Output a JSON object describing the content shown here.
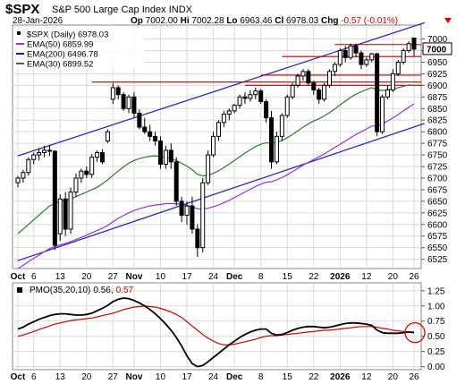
{
  "header": {
    "symbol": "$SPX",
    "name": "S&P 500 Large Cap Index",
    "exchange": "INDX",
    "date": "28-Jan-2026",
    "open_label": "Op",
    "open": "7002.00",
    "high_label": "Hi",
    "high": "7002.28",
    "low_label": "Lo",
    "low": "6963.46",
    "close_label": "Cl",
    "close": "6978.03",
    "change_label": "Chg",
    "change": "-0.57 (-0.01%)"
  },
  "chart_data": [
    {
      "type": "candlestick",
      "ylim": [
        6505,
        7030
      ],
      "y_ticks": [
        6525,
        6550,
        6575,
        6600,
        6625,
        6650,
        6675,
        6700,
        6725,
        6750,
        6775,
        6800,
        6825,
        6850,
        6875,
        6900,
        6925,
        6950,
        6975,
        7000
      ],
      "x_tick_labels": [
        "Oct",
        "6",
        "13",
        "20",
        "27",
        "Nov",
        "10",
        "17",
        "24",
        "Dec",
        "8",
        "15",
        "22",
        "2026",
        "12",
        "20",
        "26"
      ],
      "x_tick_index": [
        0,
        3,
        8,
        13,
        18,
        22,
        27,
        32,
        37,
        41,
        46,
        51,
        56,
        61,
        66,
        71,
        75
      ],
      "bold_tick_labels": [
        "Oct",
        "Nov",
        "Dec",
        "2026"
      ],
      "legend": [
        {
          "label": "$SPX (Daily) 6978.03",
          "color": "#000000"
        },
        {
          "label": "EMA(50) 6859.99",
          "color": "#9933cc"
        },
        {
          "label": "EMA(200) 6496.78",
          "color": "#1a1a99"
        },
        {
          "label": "EMA(30) 6899.52",
          "color": "#2d7a2d"
        }
      ],
      "candles": [
        [
          6690,
          6705,
          6680,
          6700
        ],
        [
          6700,
          6718,
          6690,
          6712
        ],
        [
          6712,
          6745,
          6705,
          6740
        ],
        [
          6740,
          6755,
          6730,
          6750
        ],
        [
          6750,
          6765,
          6738,
          6755
        ],
        [
          6755,
          6770,
          6745,
          6760
        ],
        [
          6760,
          6772,
          6748,
          6758
        ],
        [
          6758,
          6760,
          6545,
          6555
        ],
        [
          6580,
          6665,
          6565,
          6655
        ],
        [
          6655,
          6670,
          6575,
          6590
        ],
        [
          6590,
          6680,
          6580,
          6670
        ],
        [
          6670,
          6710,
          6660,
          6700
        ],
        [
          6700,
          6720,
          6690,
          6715
        ],
        [
          6715,
          6725,
          6700,
          6708
        ],
        [
          6708,
          6752,
          6700,
          6745
        ],
        [
          6745,
          6760,
          6735,
          6755
        ],
        [
          6755,
          6762,
          6730,
          6735
        ],
        [
          6780,
          6805,
          6775,
          6800
        ],
        [
          6870,
          6905,
          6860,
          6895
        ],
        [
          6895,
          6900,
          6870,
          6880
        ],
        [
          6880,
          6885,
          6845,
          6850
        ],
        [
          6850,
          6880,
          6840,
          6875
        ],
        [
          6875,
          6885,
          6830,
          6840
        ],
        [
          6840,
          6848,
          6805,
          6810
        ],
        [
          6810,
          6830,
          6795,
          6800
        ],
        [
          6800,
          6815,
          6780,
          6790
        ],
        [
          6790,
          6800,
          6770,
          6780
        ],
        [
          6780,
          6790,
          6720,
          6730
        ],
        [
          6730,
          6770,
          6720,
          6760
        ],
        [
          6760,
          6775,
          6720,
          6735
        ],
        [
          6735,
          6745,
          6640,
          6650
        ],
        [
          6650,
          6660,
          6605,
          6620
        ],
        [
          6620,
          6650,
          6600,
          6640
        ],
        [
          6640,
          6660,
          6580,
          6590
        ],
        [
          6590,
          6600,
          6530,
          6550
        ],
        [
          6550,
          6700,
          6540,
          6690
        ],
        [
          6690,
          6760,
          6685,
          6750
        ],
        [
          6750,
          6800,
          6745,
          6790
        ],
        [
          6790,
          6825,
          6780,
          6820
        ],
        [
          6820,
          6845,
          6810,
          6838
        ],
        [
          6838,
          6850,
          6825,
          6845
        ],
        [
          6845,
          6860,
          6840,
          6857
        ],
        [
          6857,
          6880,
          6850,
          6875
        ],
        [
          6875,
          6885,
          6860,
          6872
        ],
        [
          6872,
          6890,
          6865,
          6880
        ],
        [
          6880,
          6895,
          6870,
          6888
        ],
        [
          6888,
          6892,
          6860,
          6865
        ],
        [
          6865,
          6870,
          6820,
          6830
        ],
        [
          6830,
          6845,
          6720,
          6735
        ],
        [
          6735,
          6800,
          6730,
          6790
        ],
        [
          6790,
          6840,
          6780,
          6835
        ],
        [
          6835,
          6880,
          6830,
          6875
        ],
        [
          6875,
          6905,
          6870,
          6900
        ],
        [
          6900,
          6925,
          6895,
          6920
        ],
        [
          6920,
          6935,
          6910,
          6930
        ],
        [
          6930,
          6935,
          6900,
          6905
        ],
        [
          6905,
          6910,
          6880,
          6890
        ],
        [
          6890,
          6895,
          6860,
          6870
        ],
        [
          6870,
          6905,
          6865,
          6900
        ],
        [
          6900,
          6935,
          6895,
          6930
        ],
        [
          6930,
          6950,
          6920,
          6945
        ],
        [
          6945,
          6980,
          6940,
          6975
        ],
        [
          6975,
          6985,
          6950,
          6960
        ],
        [
          6960,
          6990,
          6955,
          6985
        ],
        [
          6985,
          6990,
          6960,
          6970
        ],
        [
          6970,
          6975,
          6935,
          6945
        ],
        [
          6945,
          6960,
          6940,
          6955
        ],
        [
          6955,
          6970,
          6950,
          6968
        ],
        [
          6968,
          6970,
          6790,
          6800
        ],
        [
          6800,
          6880,
          6795,
          6875
        ],
        [
          6875,
          6900,
          6870,
          6890
        ],
        [
          6890,
          6935,
          6885,
          6925
        ],
        [
          6925,
          6955,
          6920,
          6950
        ],
        [
          6950,
          6980,
          6945,
          6975
        ],
        [
          6975,
          6995,
          6970,
          6990
        ],
        [
          7002,
          7002.28,
          6963.46,
          6978.03
        ]
      ],
      "ema30": [
        6580,
        6590,
        6600,
        6610,
        6620,
        6630,
        6640,
        6645,
        6650,
        6652,
        6655,
        6660,
        6665,
        6670,
        6675,
        6680,
        6688,
        6696,
        6706,
        6715,
        6724,
        6732,
        6738,
        6742,
        6745,
        6747,
        6748,
        6746,
        6745,
        6742,
        6738,
        6732,
        6726,
        6718,
        6708,
        6705,
        6706,
        6710,
        6716,
        6723,
        6730,
        6738,
        6746,
        6754,
        6761,
        6768,
        6773,
        6776,
        6775,
        6777,
        6781,
        6787,
        6794,
        6802,
        6810,
        6817,
        6823,
        6828,
        6834,
        6841,
        6849,
        6858,
        6866,
        6874,
        6881,
        6886,
        6891,
        6895,
        6890,
        6889,
        6890,
        6892,
        6895,
        6898,
        6901,
        6899.52
      ],
      "ema50": [
        6505,
        6512,
        6520,
        6527,
        6534,
        6541,
        6548,
        6552,
        6556,
        6559,
        6563,
        6568,
        6572,
        6577,
        6582,
        6587,
        6592,
        6598,
        6606,
        6613,
        6619,
        6625,
        6630,
        6634,
        6637,
        6640,
        6642,
        6643,
        6645,
        6645,
        6645,
        6643,
        6641,
        6638,
        6634,
        6633,
        6635,
        6638,
        6642,
        6647,
        6652,
        6658,
        6664,
        6670,
        6676,
        6682,
        6687,
        6691,
        6692,
        6696,
        6701,
        6707,
        6714,
        6721,
        6728,
        6734,
        6740,
        6746,
        6752,
        6759,
        6766,
        6773,
        6780,
        6787,
        6794,
        6800,
        6806,
        6812,
        6813,
        6817,
        6823,
        6830,
        6837,
        6845,
        6853,
        6859.99
      ],
      "channel_upper": [
        [
          0,
          6748
        ],
        [
          77,
          7035
        ]
      ],
      "channel_lower": [
        [
          0,
          6522
        ],
        [
          77,
          6818
        ]
      ],
      "resistance_lines": [
        {
          "value": 6988,
          "from": 60,
          "to": 77
        },
        {
          "value": 6962,
          "from": 50,
          "to": 77
        },
        {
          "value": 6922,
          "from": 46,
          "to": 77
        },
        {
          "value": 6907,
          "from": 14,
          "to": 77
        },
        {
          "value": 6900,
          "from": 43,
          "to": 77
        }
      ],
      "last_value_label": "7000"
    },
    {
      "type": "line",
      "legend": [
        {
          "label": "PMO(35,20,10)",
          "color": "#000000"
        },
        {
          "label": "0.56,",
          "color": "#000000"
        },
        {
          "label": "0.57",
          "color": "#cc0000"
        }
      ],
      "ylim": [
        -0.05,
        1.38
      ],
      "y_ticks": [
        "1.25",
        "1.00",
        "0.75",
        "0.50",
        "0.25",
        "0.00"
      ],
      "x_tick_labels": [
        "Oct",
        "6",
        "13",
        "20",
        "27",
        "Nov",
        "10",
        "17",
        "24",
        "Dec",
        "8",
        "15",
        "22",
        "2026",
        "12",
        "20",
        "26"
      ],
      "series": [
        {
          "name": "PMO",
          "color": "#000000",
          "values": [
            0.62,
            0.65,
            0.7,
            0.74,
            0.78,
            0.81,
            0.84,
            0.86,
            0.87,
            0.87,
            0.86,
            0.85,
            0.85,
            0.86,
            0.88,
            0.92,
            0.96,
            1.01,
            1.07,
            1.11,
            1.13,
            1.12,
            1.09,
            1.05,
            1.0,
            0.94,
            0.87,
            0.79,
            0.7,
            0.6,
            0.48,
            0.34,
            0.18,
            0.05,
            0.0,
            0.02,
            0.08,
            0.15,
            0.22,
            0.29,
            0.36,
            0.42,
            0.48,
            0.53,
            0.57,
            0.6,
            0.62,
            0.62,
            0.55,
            0.52,
            0.53,
            0.56,
            0.6,
            0.63,
            0.65,
            0.66,
            0.66,
            0.65,
            0.64,
            0.65,
            0.67,
            0.69,
            0.71,
            0.72,
            0.72,
            0.71,
            0.7,
            0.68,
            0.6,
            0.56,
            0.55,
            0.55,
            0.55,
            0.56,
            0.57,
            0.56
          ]
        },
        {
          "name": "Signal",
          "color": "#cc0000",
          "values": [
            0.5,
            0.52,
            0.55,
            0.58,
            0.61,
            0.64,
            0.67,
            0.7,
            0.72,
            0.74,
            0.76,
            0.77,
            0.78,
            0.79,
            0.8,
            0.82,
            0.84,
            0.86,
            0.88,
            0.91,
            0.94,
            0.96,
            0.98,
            0.99,
            1.0,
            0.99,
            0.98,
            0.96,
            0.93,
            0.9,
            0.86,
            0.81,
            0.74,
            0.67,
            0.6,
            0.53,
            0.47,
            0.42,
            0.38,
            0.36,
            0.36,
            0.37,
            0.39,
            0.41,
            0.43,
            0.45,
            0.48,
            0.5,
            0.51,
            0.51,
            0.52,
            0.53,
            0.54,
            0.55,
            0.56,
            0.57,
            0.58,
            0.59,
            0.6,
            0.6,
            0.61,
            0.62,
            0.63,
            0.64,
            0.65,
            0.66,
            0.66,
            0.66,
            0.65,
            0.63,
            0.62,
            0.6,
            0.59,
            0.58,
            0.57,
            0.57
          ]
        }
      ],
      "highlight": {
        "index": 75,
        "value": 0.56
      }
    }
  ]
}
